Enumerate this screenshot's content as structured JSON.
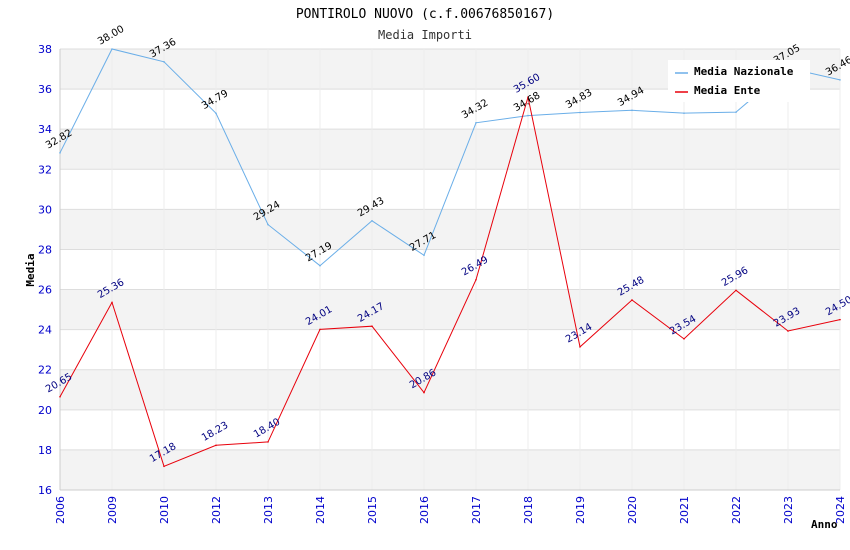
{
  "title": "PONTIROLO NUOVO (c.f.00676850167)",
  "subtitle": "Media Importi",
  "chart_data": {
    "type": "line",
    "ylabel": "Media",
    "xlabel": "Anno",
    "ylim": [
      16,
      38
    ],
    "yticks": [
      16,
      18,
      20,
      22,
      24,
      26,
      28,
      30,
      32,
      34,
      36,
      38
    ],
    "grid": true,
    "legend_position": "top-right",
    "categories": [
      "2006",
      "2009",
      "2010",
      "2012",
      "2013",
      "2014",
      "2015",
      "2016",
      "2017",
      "2018",
      "2019",
      "2020",
      "2021",
      "2022",
      "2023",
      "2024"
    ],
    "series": [
      {
        "name": "Media Nazionale",
        "color": "#6aaee8",
        "values": [
          32.82,
          38.0,
          37.36,
          34.79,
          29.24,
          27.19,
          29.43,
          27.71,
          34.32,
          34.68,
          34.83,
          34.94,
          34.8,
          34.85,
          37.05,
          36.46
        ],
        "labels": [
          "32.82",
          "38.00",
          "37.36",
          "34.79",
          "29.24",
          "27.19",
          "29.43",
          "27.71",
          "34.32",
          "34.68",
          "34.83",
          "34.94",
          "",
          "",
          "37.05",
          "36.46"
        ]
      },
      {
        "name": "Media Ente",
        "color": "#e8000b",
        "values": [
          20.65,
          25.36,
          17.18,
          18.23,
          18.4,
          24.01,
          24.17,
          20.86,
          26.49,
          35.6,
          23.14,
          25.48,
          23.54,
          25.96,
          23.93,
          24.5
        ],
        "labels": [
          "20.65",
          "25.36",
          "17.18",
          "18.23",
          "18.40",
          "24.01",
          "24.17",
          "20.86",
          "26.49",
          "35.60",
          "23.14",
          "25.48",
          "23.54",
          "25.96",
          "23.93",
          "24.50"
        ]
      }
    ]
  }
}
